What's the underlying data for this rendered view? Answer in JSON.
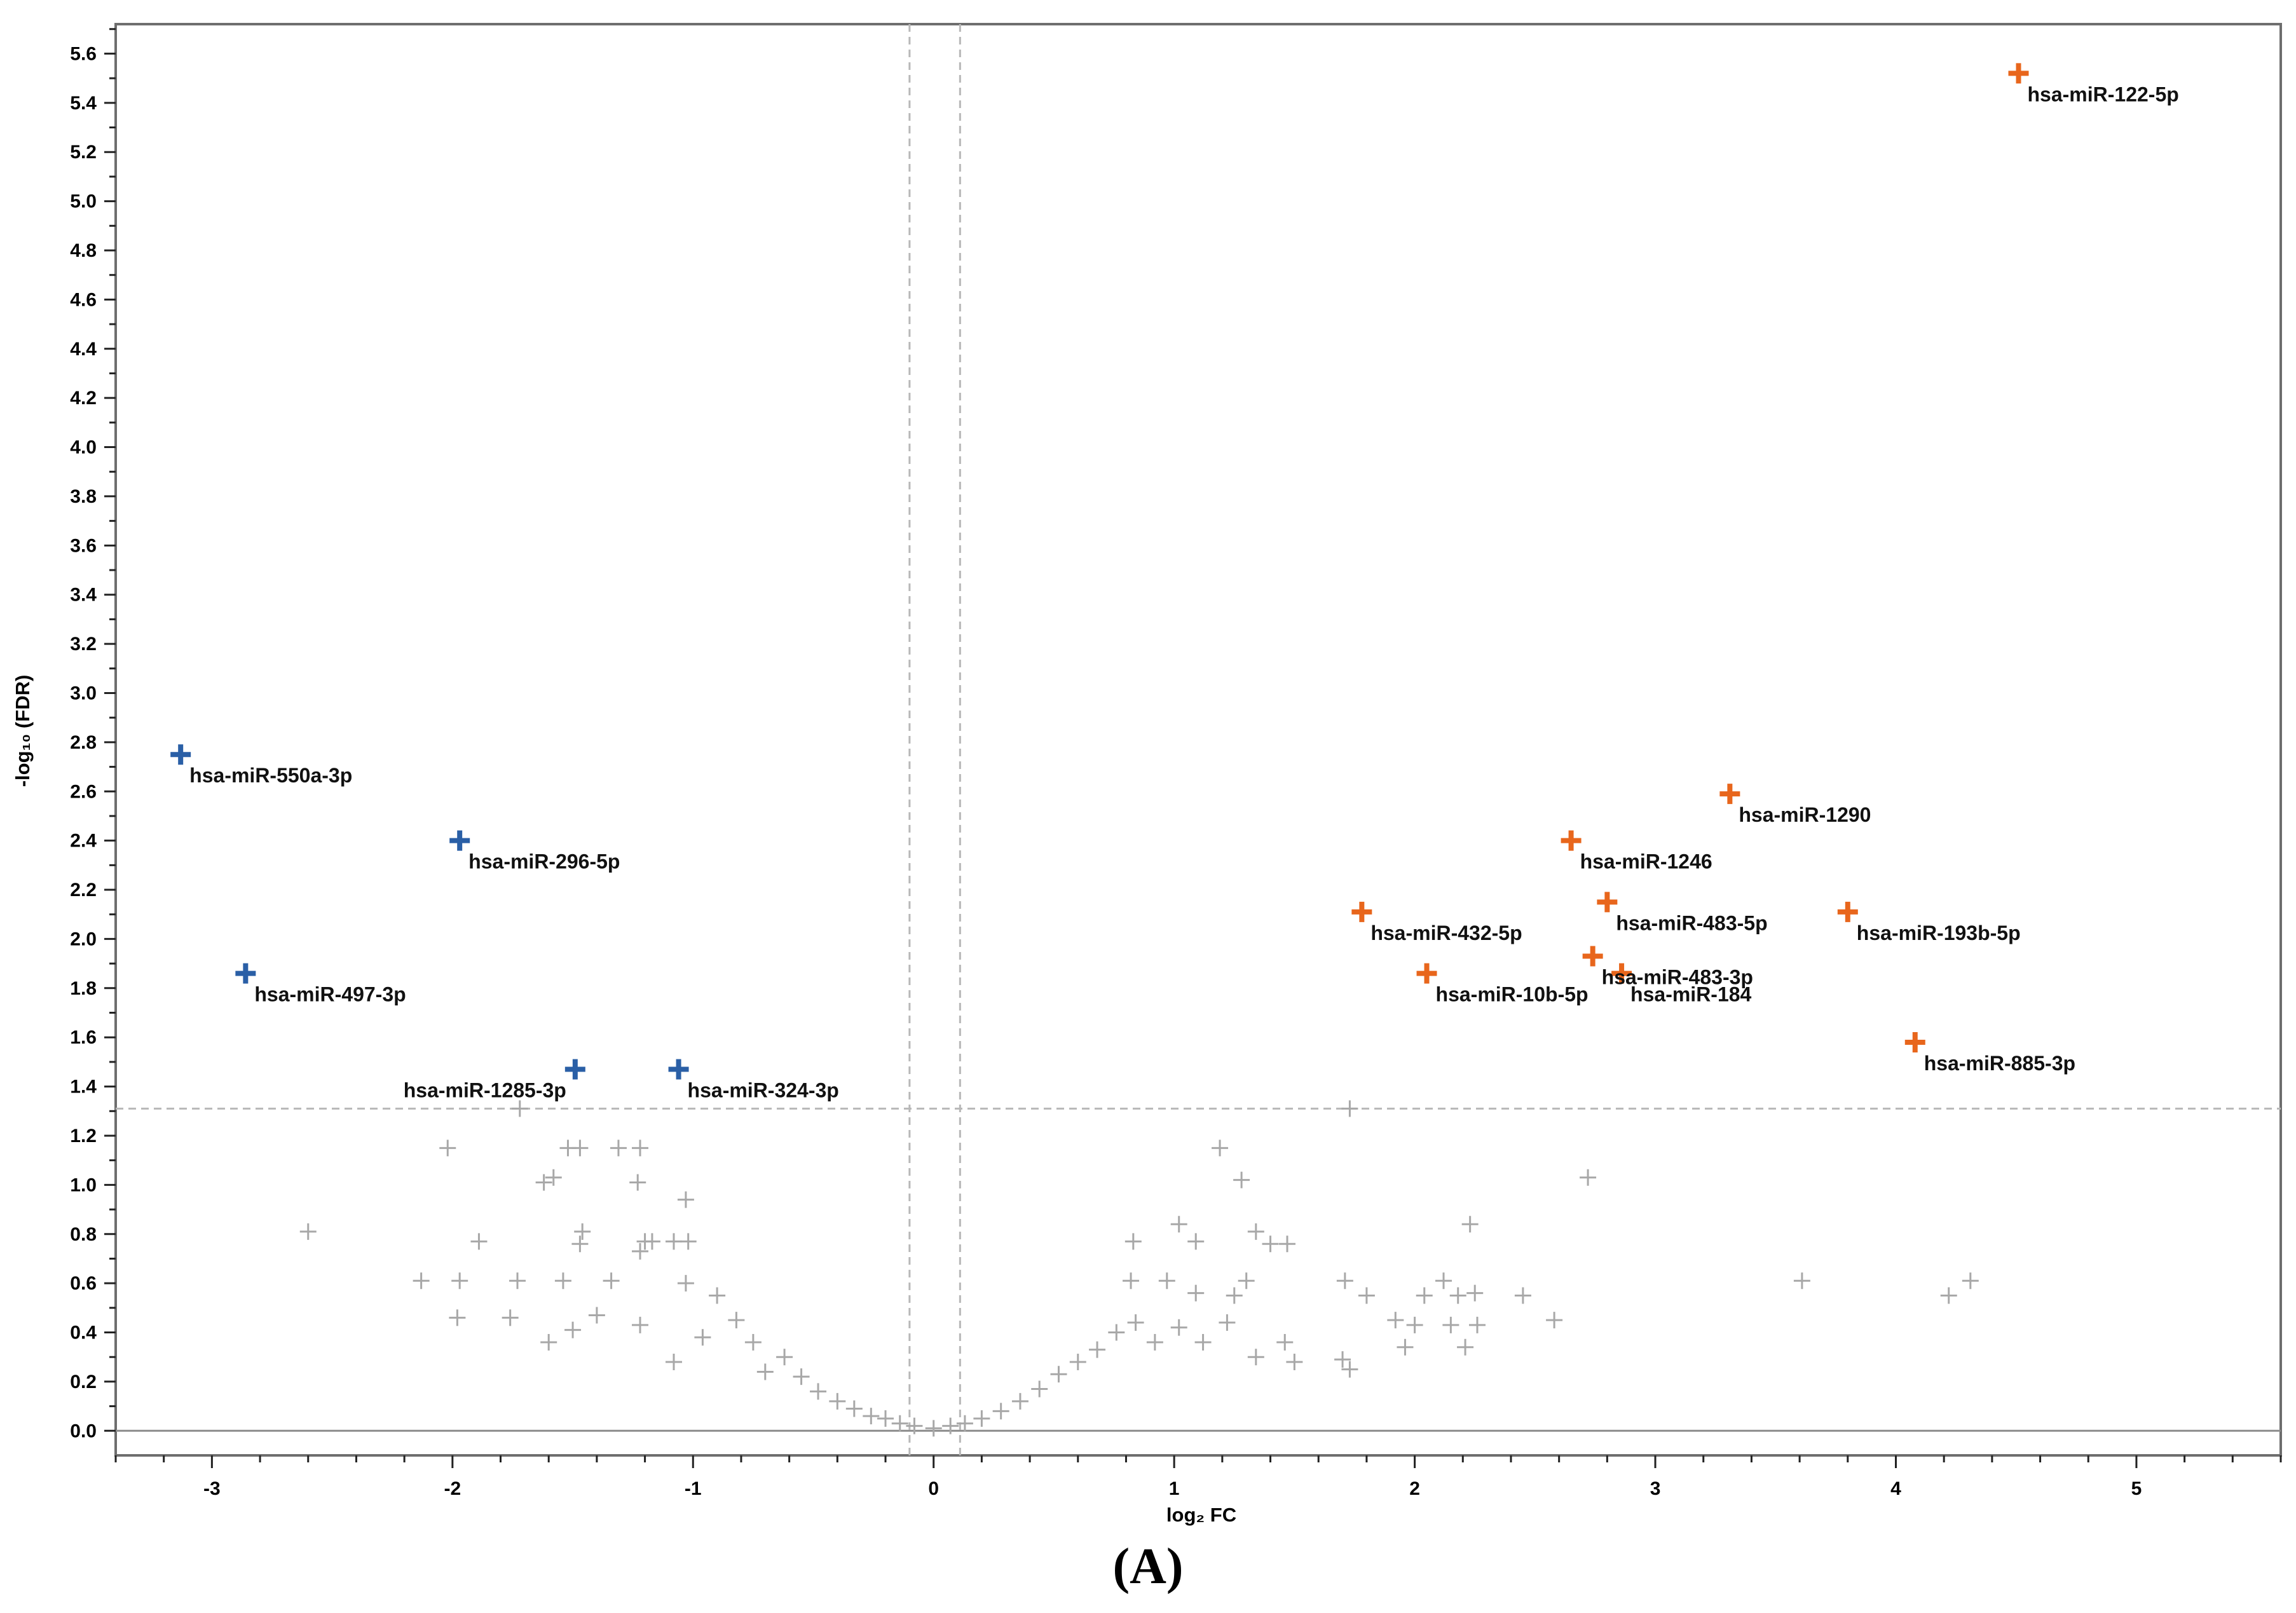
{
  "caption": "(A)",
  "chart_data": {
    "type": "scatter",
    "title": "",
    "xlabel": "log₂ FC",
    "ylabel": "-log₁₀ (FDR)",
    "xlim": [
      -3.4,
      5.6
    ],
    "ylim": [
      -0.1,
      5.72
    ],
    "xticks": [
      -3,
      -2,
      -1,
      0,
      1,
      2,
      3,
      4,
      5
    ],
    "xtick_labels": [
      "-3",
      "-2",
      "-1",
      "0",
      "1",
      "2",
      "3",
      "4",
      "5"
    ],
    "yticks": [
      0.0,
      0.2,
      0.4,
      0.6,
      0.8,
      1.0,
      1.2,
      1.4,
      1.6,
      1.8,
      2.0,
      2.2,
      2.4,
      2.6,
      2.8,
      3.0,
      3.2,
      3.4,
      3.6,
      3.8,
      4.0,
      4.2,
      4.4,
      4.6,
      4.8,
      5.0,
      5.2,
      5.4,
      5.6
    ],
    "ytick_labels": [
      "0.0",
      "0.2",
      "0.4",
      "0.6",
      "0.8",
      "1.0",
      "1.2",
      "1.4",
      "1.6",
      "1.8",
      "2.0",
      "2.2",
      "2.4",
      "2.6",
      "2.8",
      "3.0",
      "3.2",
      "3.4",
      "3.6",
      "3.8",
      "4.0",
      "4.2",
      "4.4",
      "4.6",
      "4.8",
      "5.0",
      "5.2",
      "5.4",
      "5.6"
    ],
    "thresholds": {
      "x": [
        -0.1,
        0.11
      ],
      "y": 1.31
    },
    "grid": false,
    "legend": "none",
    "colors": {
      "up": "#e8661c",
      "down": "#2a5fa6",
      "ns": "#a8a8a8",
      "threshold": "#b8b8b8",
      "zero": "#8c8c8c"
    },
    "series": [
      {
        "group": "down",
        "points": [
          {
            "label": "hsa-miR-550a-3p",
            "x": -3.13,
            "y": 2.75
          },
          {
            "label": "hsa-miR-296-5p",
            "x": -1.97,
            "y": 2.4
          },
          {
            "label": "hsa-miR-497-3p",
            "x": -2.86,
            "y": 1.86
          },
          {
            "label": "hsa-miR-1285-3p",
            "x": -1.49,
            "y": 1.47
          },
          {
            "label": "hsa-miR-324-3p",
            "x": -1.06,
            "y": 1.47
          }
        ]
      },
      {
        "group": "up",
        "points": [
          {
            "label": "hsa-miR-122-5p",
            "x": 4.51,
            "y": 5.52
          },
          {
            "label": "hsa-miR-1290",
            "x": 3.31,
            "y": 2.59
          },
          {
            "label": "hsa-miR-1246",
            "x": 2.65,
            "y": 2.4
          },
          {
            "label": "hsa-miR-483-5p",
            "x": 2.8,
            "y": 2.15
          },
          {
            "label": "hsa-miR-432-5p",
            "x": 1.78,
            "y": 2.11
          },
          {
            "label": "hsa-miR-193b-5p",
            "x": 3.8,
            "y": 2.11
          },
          {
            "label": "hsa-miR-483-3p",
            "x": 2.74,
            "y": 1.93
          },
          {
            "label": "hsa-miR-10b-5p",
            "x": 2.05,
            "y": 1.86
          },
          {
            "label": "hsa-miR-184",
            "x": 2.86,
            "y": 1.86
          },
          {
            "label": "hsa-miR-885-3p",
            "x": 4.08,
            "y": 1.58
          }
        ]
      },
      {
        "group": "ns",
        "points": [
          {
            "x": -2.6,
            "y": 0.81
          },
          {
            "x": -2.02,
            "y": 1.15
          },
          {
            "x": -1.72,
            "y": 1.31
          },
          {
            "x": -1.47,
            "y": 1.15
          },
          {
            "x": -1.52,
            "y": 1.15
          },
          {
            "x": -1.31,
            "y": 1.15
          },
          {
            "x": -1.22,
            "y": 1.15
          },
          {
            "x": -1.62,
            "y": 1.01
          },
          {
            "x": -1.58,
            "y": 1.03
          },
          {
            "x": -1.23,
            "y": 1.01
          },
          {
            "x": -1.03,
            "y": 0.94
          },
          {
            "x": -1.46,
            "y": 0.81
          },
          {
            "x": -1.89,
            "y": 0.77
          },
          {
            "x": -1.47,
            "y": 0.76
          },
          {
            "x": -1.2,
            "y": 0.77
          },
          {
            "x": -1.17,
            "y": 0.77
          },
          {
            "x": -1.08,
            "y": 0.77
          },
          {
            "x": -1.02,
            "y": 0.77
          },
          {
            "x": -1.22,
            "y": 0.73
          },
          {
            "x": -2.13,
            "y": 0.61
          },
          {
            "x": -1.97,
            "y": 0.61
          },
          {
            "x": -1.73,
            "y": 0.61
          },
          {
            "x": -1.54,
            "y": 0.61
          },
          {
            "x": -1.34,
            "y": 0.61
          },
          {
            "x": -1.03,
            "y": 0.6
          },
          {
            "x": -1.98,
            "y": 0.46
          },
          {
            "x": -1.76,
            "y": 0.46
          },
          {
            "x": -1.5,
            "y": 0.41
          },
          {
            "x": -1.6,
            "y": 0.36
          },
          {
            "x": -1.22,
            "y": 0.43
          },
          {
            "x": -1.4,
            "y": 0.47
          },
          {
            "x": -1.08,
            "y": 0.28
          },
          {
            "x": -0.96,
            "y": 0.38
          },
          {
            "x": -0.9,
            "y": 0.55
          },
          {
            "x": -0.82,
            "y": 0.45
          },
          {
            "x": -0.75,
            "y": 0.36
          },
          {
            "x": -0.7,
            "y": 0.24
          },
          {
            "x": -0.62,
            "y": 0.3
          },
          {
            "x": -0.55,
            "y": 0.22
          },
          {
            "x": -0.48,
            "y": 0.16
          },
          {
            "x": -0.4,
            "y": 0.12
          },
          {
            "x": -0.33,
            "y": 0.09
          },
          {
            "x": -0.26,
            "y": 0.06
          },
          {
            "x": -0.2,
            "y": 0.05
          },
          {
            "x": -0.14,
            "y": 0.03
          },
          {
            "x": -0.08,
            "y": 0.02
          },
          {
            "x": 0.0,
            "y": 0.01
          },
          {
            "x": 0.07,
            "y": 0.02
          },
          {
            "x": 0.13,
            "y": 0.03
          },
          {
            "x": 0.2,
            "y": 0.05
          },
          {
            "x": 0.28,
            "y": 0.08
          },
          {
            "x": 0.36,
            "y": 0.12
          },
          {
            "x": 0.44,
            "y": 0.17
          },
          {
            "x": 0.52,
            "y": 0.23
          },
          {
            "x": 0.6,
            "y": 0.28
          },
          {
            "x": 0.68,
            "y": 0.33
          },
          {
            "x": 0.76,
            "y": 0.4
          },
          {
            "x": 0.84,
            "y": 0.44
          },
          {
            "x": 0.92,
            "y": 0.36
          },
          {
            "x": 1.02,
            "y": 0.42
          },
          {
            "x": 1.12,
            "y": 0.36
          },
          {
            "x": 1.22,
            "y": 0.44
          },
          {
            "x": 1.34,
            "y": 0.3
          },
          {
            "x": 1.46,
            "y": 0.36
          },
          {
            "x": 1.5,
            "y": 0.28
          },
          {
            "x": 1.02,
            "y": 0.84
          },
          {
            "x": 1.09,
            "y": 0.77
          },
          {
            "x": 1.19,
            "y": 1.15
          },
          {
            "x": 1.28,
            "y": 1.02
          },
          {
            "x": 1.34,
            "y": 0.81
          },
          {
            "x": 1.4,
            "y": 0.76
          },
          {
            "x": 1.47,
            "y": 0.76
          },
          {
            "x": 1.73,
            "y": 1.31
          },
          {
            "x": 0.83,
            "y": 0.77
          },
          {
            "x": 0.82,
            "y": 0.61
          },
          {
            "x": 0.97,
            "y": 0.61
          },
          {
            "x": 1.09,
            "y": 0.56
          },
          {
            "x": 1.25,
            "y": 0.55
          },
          {
            "x": 1.3,
            "y": 0.61
          },
          {
            "x": 1.71,
            "y": 0.61
          },
          {
            "x": 1.8,
            "y": 0.55
          },
          {
            "x": 1.7,
            "y": 0.29
          },
          {
            "x": 1.73,
            "y": 0.25
          },
          {
            "x": 1.92,
            "y": 0.45
          },
          {
            "x": 1.96,
            "y": 0.34
          },
          {
            "x": 2.0,
            "y": 0.43
          },
          {
            "x": 2.04,
            "y": 0.55
          },
          {
            "x": 2.12,
            "y": 0.61
          },
          {
            "x": 2.18,
            "y": 0.55
          },
          {
            "x": 2.15,
            "y": 0.43
          },
          {
            "x": 2.21,
            "y": 0.34
          },
          {
            "x": 2.23,
            "y": 0.84
          },
          {
            "x": 2.26,
            "y": 0.43
          },
          {
            "x": 2.25,
            "y": 0.56
          },
          {
            "x": 2.45,
            "y": 0.55
          },
          {
            "x": 2.58,
            "y": 0.45
          },
          {
            "x": 2.72,
            "y": 1.03
          },
          {
            "x": 3.61,
            "y": 0.61
          },
          {
            "x": 4.22,
            "y": 0.55
          },
          {
            "x": 4.31,
            "y": 0.61
          }
        ]
      }
    ]
  }
}
